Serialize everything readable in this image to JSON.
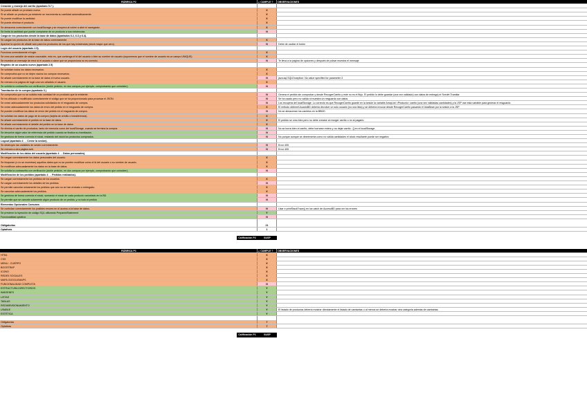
{
  "p2": {
    "header": {
      "c1": "RÚBRICA P2",
      "c2": "¿ CUMPLE ?",
      "c3": "OBSERVACIONES"
    },
    "rows": [
      {
        "t": "sec",
        "c1": "Creación y manejo del carrito (apartado 5.7 ).",
        "c2": "",
        "c3": ""
      },
      {
        "t": "o",
        "c1": "Se puede añadir un producto nuevo.",
        "c2": "X",
        "c3": ""
      },
      {
        "t": "o",
        "c1": "Si se añade un producto ya existente se incrementa su cantidad automáticamente.",
        "c2": "X",
        "c3": ""
      },
      {
        "t": "o",
        "c1": "Se puede modificar la cantidad.",
        "c2": "X",
        "c3": ""
      },
      {
        "t": "o",
        "c1": "Se puede eliminar el producto.",
        "c2": "X",
        "c3": ""
      },
      {
        "t": "o",
        "c1": "Se almacena correctamente con localStorage y se recupera al volver a abrir el navegador.",
        "c2": "X",
        "c3": ""
      },
      {
        "t": "g",
        "c1": "Se limita la cantidad que puede comprarse de un producto a sus existencias",
        "c2": "N",
        "c3": ""
      },
      {
        "t": "sec",
        "c1": "Carga de los productos desde la base de datos (apartados 6.2, 6.3 y 6.4).",
        "c2": "",
        "c3": ""
      },
      {
        "t": "o",
        "c1": "Se cargan los productos de la base de datos correctamente.",
        "c2": "X",
        "c3": ""
      },
      {
        "t": "o",
        "c1": "Aparece la opción de añadir solo para los productos de los que hay existencias (stock mayor que cero).",
        "c2": "N",
        "c3": "Debe de ocultar el botón"
      },
      {
        "t": "sec",
        "c1": "Login del usuario (apartado 2.5).",
        "c2": "",
        "c3": ""
      },
      {
        "t": "o",
        "c1": "Funciona correctamente el login.",
        "c2": "X",
        "c3": ""
      },
      {
        "t": "o",
        "c1": "Se crea una variable de sesión razonable, esto es, que contenga el id del usuario o bien su nombre de usuario (suponemos que el nombre de usuario es un campo UNIQUE).",
        "c2": "X",
        "c3": ""
      },
      {
        "t": "o",
        "c1": "Se muestra un mensaje de error si el usuario o clave que se proporciona no es correcto.",
        "c2": "N",
        "c3": "Te lleva a la página de opciones y después de pulsar muestra el mensaje"
      },
      {
        "t": "sec",
        "c1": "Registro de un usuario nuevo (apartado 2.5)",
        "c2": "",
        "c3": ""
      },
      {
        "t": "o",
        "c1": "Se solicitan todos los datos necesarios.",
        "c2": "X",
        "c3": ""
      },
      {
        "t": "o",
        "c1": "Se comprueba que no se dejen vacíos los campos necesarios.",
        "c2": "X",
        "c3": ""
      },
      {
        "t": "o",
        "c1": "Se añade correctamente en la base de datos el nuevo usuario.",
        "c2": "N",
        "c3": "java.sql.SQLException: No value specified for parameter 3"
      },
      {
        "t": "o",
        "c1": "Se reenvía a la página de login una vez añadido el usuario.",
        "c2": "X",
        "c3": ""
      },
      {
        "t": "g",
        "c1": "Se solicita la contraseña con verificación (doble petición, en dos campos por ejemplo, comprobando que coinciden)",
        "c2": "N",
        "c3": ""
      },
      {
        "t": "sec",
        "c1": "Tramitación de la compra (apartado 3 )",
        "c2": "",
        "c3": ""
      },
      {
        "t": "o",
        "c1": "Se comprueba que no se solicita más cantidad de un producto que la existente.",
        "c2": "N",
        "c3": "Genera el pedido sin comprobar y desde RecogerCarrito y este no es el flujo. El pedido lo debe guardar (una vez validado) con datos de entrega) el Servlet Tramitar"
      },
      {
        "t": "o",
        "c1": "Se ha utilizado o modificado correctamente el código que se ha proporcionado para procesar el JSON.",
        "c2": "N",
        "c3": "Se ha usado pero no valida ni muestra un resguardo con datos"
      },
      {
        "t": "o",
        "c1": "Se crean adecuadamente los productos solicitados en el resguardo de compra.",
        "c2": "N",
        "c3": "Los recupera del localStorage. Lo correcto es que RecogerCarrito guarde en la sesión la variable ArrayList <Producto> carrito (una vez validadas cantidades) y la JSP use esta variable para generar el resguardo"
      },
      {
        "t": "o",
        "c1": "Se crean adecuadamente los datos de envío del pedido en el resguardo de compra.",
        "c2": "X",
        "c3": "El método obtenerUsuarioBD debería devolver un solo usuario (no una lista) y se debería invocar desde RecogerCarrito pasando el IdusBean por la sesión a la JSP"
      },
      {
        "t": "o",
        "c1": "Se pueden modificar los datos de envío del pedido en el resguardo de compra.",
        "c2": "N",
        "c3": "No se almacenan los cambios en la BBDD"
      },
      {
        "t": "o",
        "c1": "Se solicitan los datos de pago de la compra (tarjeta de crédito o transferencia).",
        "c2": "X",
        "c3": ""
      },
      {
        "t": "o",
        "c1": "Se añade correctamente el pedido en la base de datos.",
        "c2": "X",
        "c3": "El pedido se crea bien pero no debe crearse al recoger carrito o no al pagarlo"
      },
      {
        "t": "o",
        "c1": "Se añade correctamente el detalle del pedido en la base de datos.",
        "c2": "X",
        "c3": ""
      },
      {
        "t": "o",
        "c1": "Se elimina el carrito de productos, tanto de memoria como del localStorage, cuando se termina la compra.",
        "c2": "N",
        "c3": "No se borra bien el carrito, debe borrarse entero y no dejar carrito : [] en el localStorage"
      },
      {
        "t": "g",
        "c1": "Se devuelve algún valor de referencia del pedido cuando se finaliza su tramitación.",
        "c2": "N",
        "c3": ""
      },
      {
        "t": "g",
        "c1": "Se gestiona de forma correcta el stock, restando del stock los productos comprados.",
        "c2": "N",
        "c3": "No porque aunque se decrementa como no valida cantidades el stock resultante puede ser negativo"
      },
      {
        "t": "sec",
        "c1": "Logout (apartado 4 → Cerrar la sesión).",
        "c2": "",
        "c3": ""
      },
      {
        "t": "o",
        "c1": "Se destruyen las variables de sesión correctamente.",
        "c2": "N",
        "c3": "Error 405"
      },
      {
        "t": "o",
        "c1": "Se reenvía a otra página web.",
        "c2": "N",
        "c3": "Error 405"
      },
      {
        "t": "sec",
        "c1": "Modificación de los datos del usuario (apartado 4 → Datos personales).",
        "c2": "",
        "c3": ""
      },
      {
        "t": "o",
        "c1": "Se cargan correctamente los datos personales del usuario.",
        "c2": "X",
        "c3": ""
      },
      {
        "t": "o",
        "c1": "Se bloquean (o no se muestran) aquellos datos que no se pueden modificar como el id del usuario o su nombre de usuario.",
        "c2": "X",
        "c3": ""
      },
      {
        "t": "o",
        "c1": "Se modifican adecuadamente los datos en la base de datos.",
        "c2": "X",
        "c3": ""
      },
      {
        "t": "g",
        "c1": "Se solicita la contraseña con verificación (doble petición, en dos campos por ejemplo, comprobando que coinciden)",
        "c2": "N",
        "c3": ""
      },
      {
        "t": "sec",
        "c1": "Modificación de los pedidos (apartado 4 → Pedidos realizados).",
        "c2": "",
        "c3": ""
      },
      {
        "t": "o",
        "c1": "Se cargan correctamente los pedidos de los usuarios.",
        "c2": "X",
        "c3": ""
      },
      {
        "t": "o",
        "c1": "Se cargan correctamente los detalles de los pedidos.",
        "c2": "N",
        "c3": ""
      },
      {
        "t": "o",
        "c1": "Se permite cancelar únicamente los pedidos que aún no se han enviado o entregado.",
        "c2": "X",
        "c3": ""
      },
      {
        "t": "o",
        "c1": "Se cancelan adecuadamente los pedidos.",
        "c2": "X",
        "c3": ""
      },
      {
        "t": "g",
        "c1": "Se gestiona de forma correcta el stock, sumando el stock de cada producto cancelado en la BD.",
        "c2": "N",
        "c3": ""
      },
      {
        "t": "g",
        "c1": "Se permite que se cancele solamente algún producto de un pedido, y no todo el pedido",
        "c2": "N",
        "c3": ""
      },
      {
        "t": "sec",
        "c1": "Elementos Opcionales Comunes",
        "c2": "",
        "c3": ""
      },
      {
        "t": "o",
        "c1": "Se controlan correctamente los posibles errores en el acceso a la base de datos.",
        "c2": "N",
        "c3": "Usar e.printStackTrace() en los catch de AccesoBD para ver los errores"
      },
      {
        "t": "g",
        "c1": "Se previene la inyección de código SQL utilizando PreparedStatement.",
        "c2": "Y",
        "c3": ""
      },
      {
        "t": "g",
        "c1": "Funcionalidad optativa",
        "c2": "N",
        "c3": ""
      },
      {
        "t": "spacer",
        "c1": "",
        "c2": "",
        "c3": ""
      },
      {
        "t": "sec",
        "c1": "Obligatorias",
        "c2": "21",
        "c3": ""
      },
      {
        "t": "sec",
        "c1": "Optativas",
        "c2": "1",
        "c3": ""
      }
    ],
    "calc": {
      "label": "Calificación P2",
      "value": "SUSP"
    }
  },
  "p1": {
    "header": {
      "c1": "RÚBRICA P1",
      "c2": "¿ CUMPLE ?",
      "c3": "OBSERVACIONES"
    },
    "rows": [
      {
        "t": "o",
        "c1": "HTML",
        "c2": "X",
        "c3": ""
      },
      {
        "t": "o",
        "c1": "CSS",
        "c2": "X",
        "c3": ""
      },
      {
        "t": "o",
        "c1": "MENU - CUERPO",
        "c2": "X",
        "c3": ""
      },
      {
        "t": "o",
        "c1": "BOOSTRAP",
        "c2": "X",
        "c3": ""
      },
      {
        "t": "o",
        "c1": "ICONO",
        "c2": "X",
        "c3": ""
      },
      {
        "t": "o",
        "c1": "REDES SOCIALES",
        "c2": "X",
        "c3": ""
      },
      {
        "t": "o",
        "c1": "MAPA GOOGLEMAPS",
        "c2": "X",
        "c3": ""
      },
      {
        "t": "o",
        "c1": "FUNCIONALIDAD COMPLETA",
        "c2": "N",
        "c3": ""
      },
      {
        "t": "g",
        "c1": "ESTRUCTURA DIRECTORIOS",
        "c2": "Y",
        "c3": ""
      },
      {
        "t": "g",
        "c1": "IMÁGENES",
        "c2": "Y",
        "c3": ""
      },
      {
        "t": "g",
        "c1": "LISTAS",
        "c2": "Y",
        "c3": ""
      },
      {
        "t": "g",
        "c1": "TABLAS",
        "c2": "Y",
        "c3": ""
      },
      {
        "t": "g",
        "c1": "REDIMENSIONAMIENTO",
        "c2": "Y",
        "c3": ""
      },
      {
        "t": "g",
        "c1": "USABLE",
        "c2": "Y",
        "c3": "El listado de productos debería mostrar directamente el listado de camisetas o al menos se debería mostrar otra categoría además de camisetas"
      },
      {
        "t": "g",
        "c1": "ESTÉTICA",
        "c2": "Y",
        "c3": ""
      },
      {
        "t": "spacer",
        "c1": "",
        "c2": "",
        "c3": ""
      },
      {
        "t": "o",
        "c1": "Obligatorias",
        "c2": "7",
        "c3": ""
      },
      {
        "t": "o",
        "c1": "Optativas",
        "c2": "7",
        "c3": ""
      }
    ],
    "calc": {
      "label": "Calificación P1",
      "value": "SUSP"
    }
  }
}
